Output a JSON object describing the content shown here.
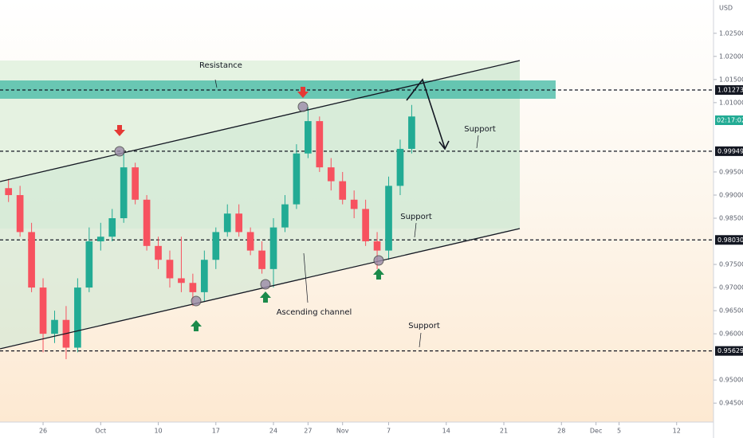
{
  "chart_data": {
    "type": "candlestick",
    "currency": "USD",
    "countdown": "02:17:02",
    "x": [
      -3,
      -2,
      -1,
      0,
      1,
      2,
      3,
      4,
      5,
      6,
      7,
      8,
      9,
      10,
      11,
      12,
      13,
      14,
      15,
      16,
      17,
      18,
      19,
      20,
      21,
      22,
      23,
      24,
      25,
      26,
      27,
      28,
      29,
      30,
      31,
      32
    ],
    "open": [
      0.9915,
      0.99,
      0.982,
      0.97,
      0.96,
      0.963,
      0.957,
      0.97,
      0.98,
      0.981,
      0.985,
      0.996,
      0.989,
      0.979,
      0.976,
      0.972,
      0.971,
      0.969,
      0.976,
      0.982,
      0.986,
      0.982,
      0.978,
      0.974,
      0.983,
      0.988,
      0.999,
      1.006,
      0.996,
      0.993,
      0.989,
      0.987,
      0.98,
      0.978,
      0.992,
      1.0
    ],
    "high": [
      0.9935,
      0.992,
      0.984,
      0.972,
      0.965,
      0.966,
      0.972,
      0.983,
      0.984,
      0.987,
      0.999,
      0.997,
      0.99,
      0.981,
      0.978,
      0.981,
      0.973,
      0.978,
      0.983,
      0.988,
      0.988,
      0.983,
      0.98,
      0.985,
      0.99,
      1.001,
      1.009,
      1.007,
      0.998,
      0.995,
      0.991,
      0.989,
      0.982,
      0.994,
      1.002,
      1.0095
    ],
    "low": [
      0.9885,
      0.981,
      0.969,
      0.956,
      0.958,
      0.9545,
      0.956,
      0.969,
      0.978,
      0.98,
      0.984,
      0.988,
      0.978,
      0.974,
      0.97,
      0.969,
      0.966,
      0.967,
      0.974,
      0.981,
      0.981,
      0.977,
      0.973,
      0.97,
      0.982,
      0.987,
      0.998,
      0.995,
      0.991,
      0.988,
      0.985,
      0.979,
      0.974,
      0.976,
      0.99,
      0.999
    ],
    "close": [
      0.99,
      0.982,
      0.97,
      0.96,
      0.963,
      0.957,
      0.97,
      0.98,
      0.981,
      0.985,
      0.996,
      0.989,
      0.979,
      0.976,
      0.972,
      0.971,
      0.969,
      0.976,
      0.982,
      0.986,
      0.982,
      0.978,
      0.974,
      0.983,
      0.988,
      0.999,
      1.006,
      0.996,
      0.993,
      0.989,
      0.987,
      0.98,
      0.978,
      0.992,
      1.0,
      1.007
    ],
    "up_color": "#22ab94",
    "down_color": "#f7525f",
    "xlim": [
      -3.74,
      58.2
    ],
    "ylim": [
      0.9409,
      1.0322
    ],
    "xticks": [
      {
        "value": 0,
        "label": "26"
      },
      {
        "value": 5,
        "label": "Oct"
      },
      {
        "value": 10,
        "label": "10"
      },
      {
        "value": 15,
        "label": "17"
      },
      {
        "value": 20,
        "label": "24"
      },
      {
        "value": 23,
        "label": "27"
      },
      {
        "value": 26,
        "label": "Nov"
      },
      {
        "value": 30,
        "label": "7"
      },
      {
        "value": 35,
        "label": "14"
      },
      {
        "value": 40,
        "label": "21"
      },
      {
        "value": 45,
        "label": "28"
      },
      {
        "value": 48,
        "label": "Dec"
      },
      {
        "value": 50,
        "label": "5"
      },
      {
        "value": 55,
        "label": "12"
      }
    ],
    "yticks": [
      {
        "value": 1.025,
        "label": "1.02500"
      },
      {
        "value": 1.02,
        "label": "1.02000"
      },
      {
        "value": 1.015,
        "label": "1.01500"
      },
      {
        "value": 1.01,
        "label": "1.01000"
      },
      {
        "value": 0.995,
        "label": "0.99500"
      },
      {
        "value": 0.99,
        "label": "0.99000"
      },
      {
        "value": 0.985,
        "label": "0.98500"
      },
      {
        "value": 0.975,
        "label": "0.97500"
      },
      {
        "value": 0.97,
        "label": "0.97000"
      },
      {
        "value": 0.965,
        "label": "0.96500"
      },
      {
        "value": 0.96,
        "label": "0.96000"
      },
      {
        "value": 0.95,
        "label": "0.95000"
      },
      {
        "value": 0.945,
        "label": "0.94500"
      }
    ],
    "levels": [
      {
        "value": 1.01273,
        "label": "1.01273"
      },
      {
        "value": 0.99949,
        "label": "0.99949"
      },
      {
        "value": 0.9803,
        "label": "0.98030"
      },
      {
        "value": 0.95629,
        "label": "0.95629"
      }
    ],
    "annotations": [
      "Resistance",
      "Support",
      "Support",
      "Support",
      "Ascending channel"
    ]
  }
}
